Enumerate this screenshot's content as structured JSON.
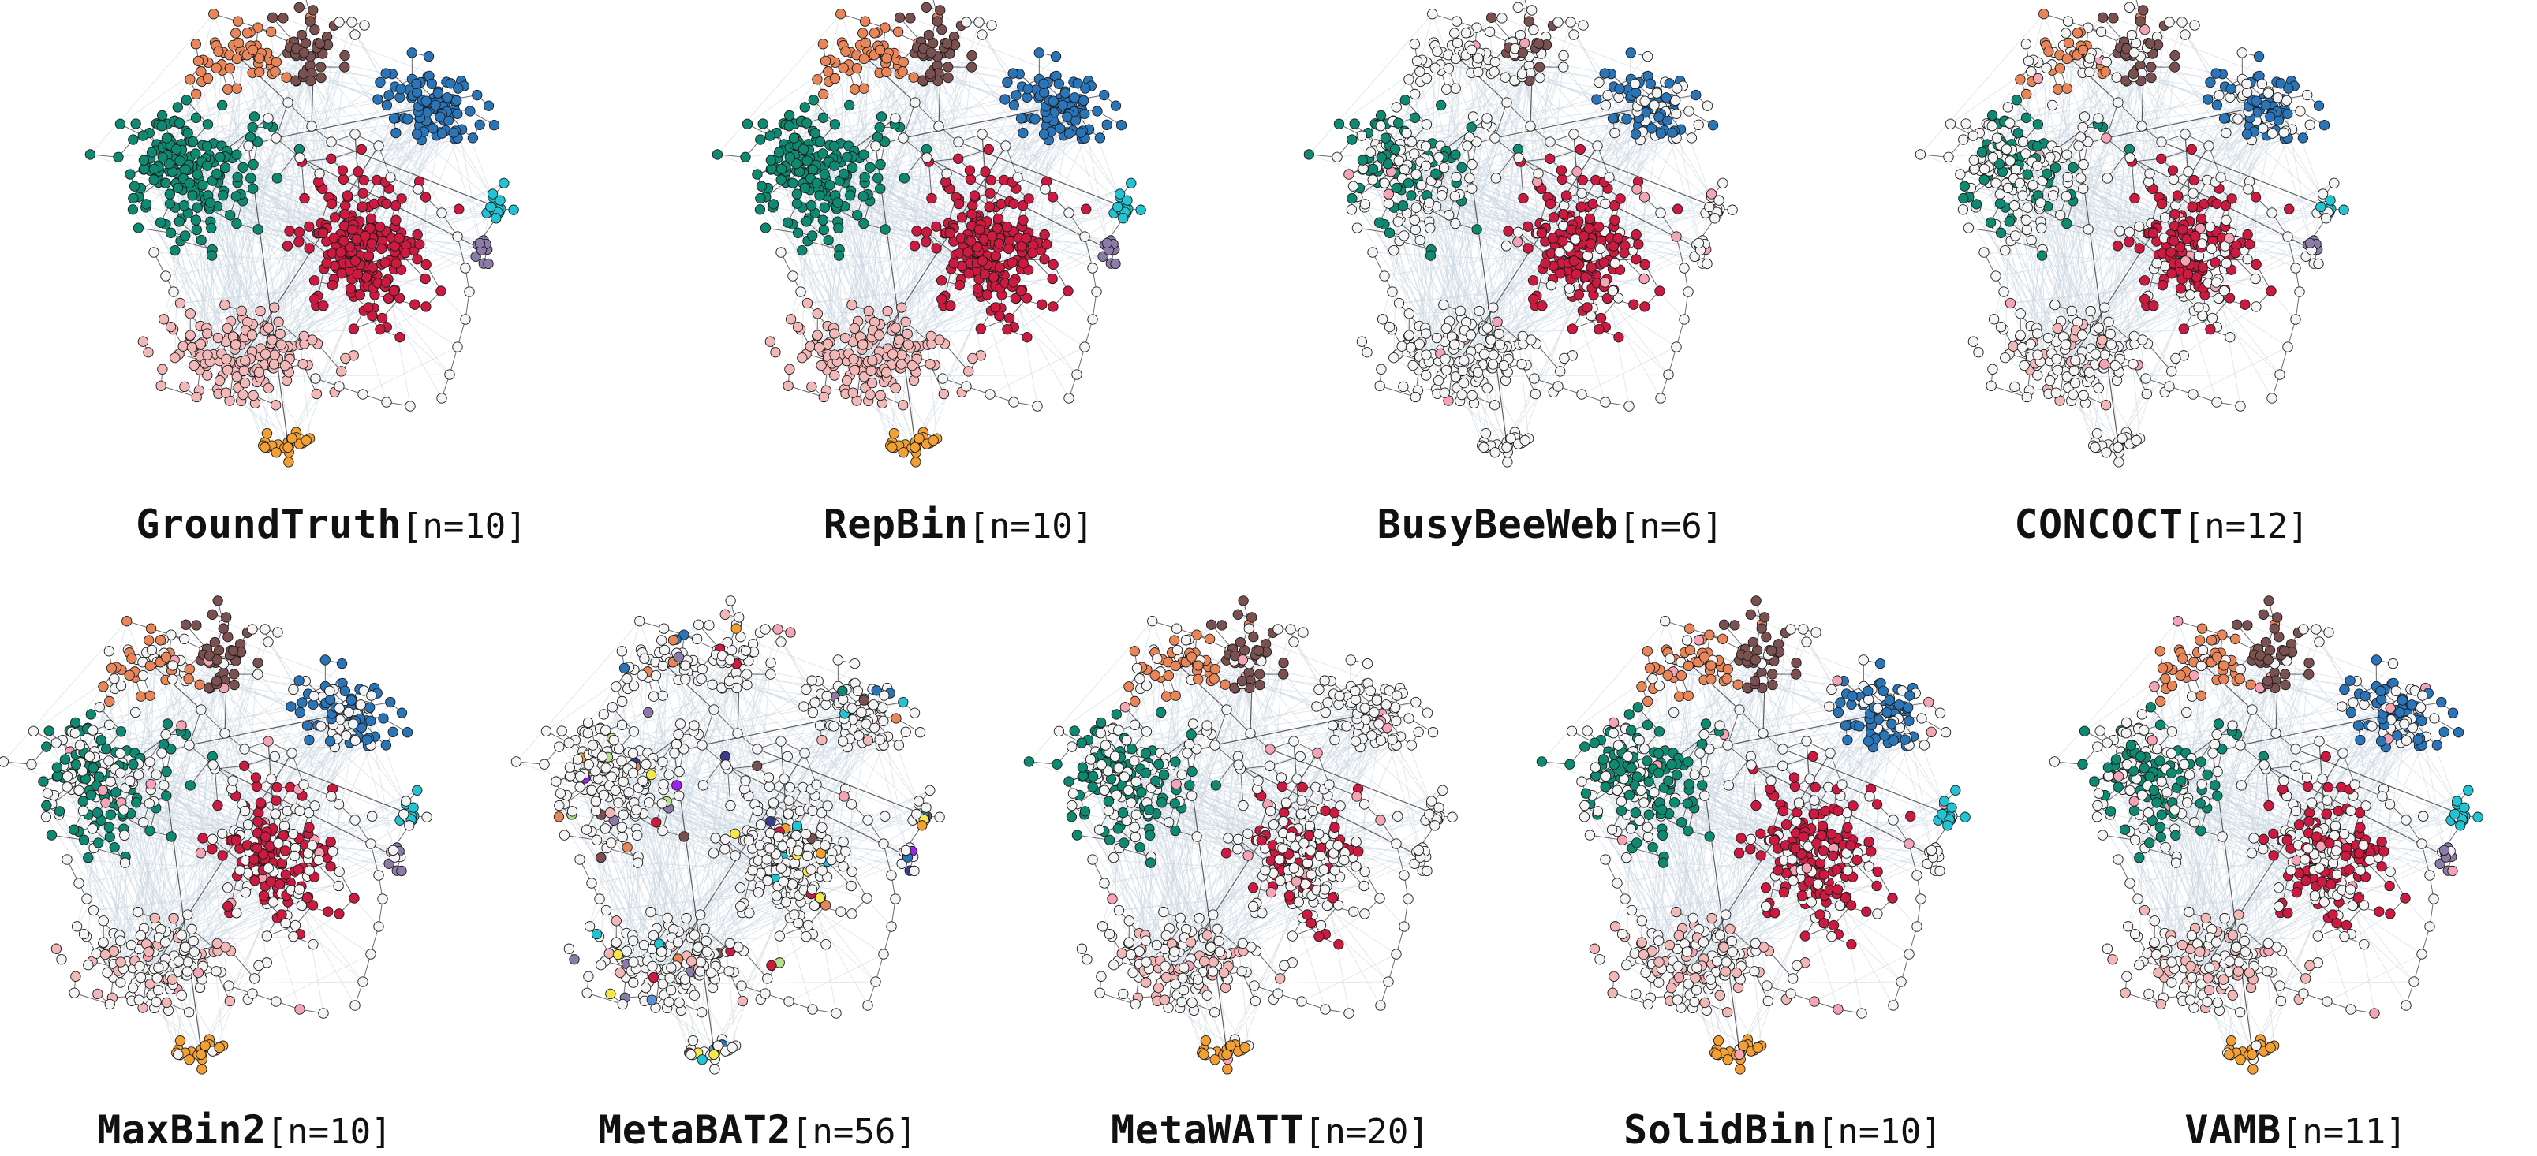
{
  "figure": {
    "panels": [
      {
        "method": "GroundTruth",
        "count_label": "[n=10]",
        "bins": 10,
        "coloring": "truth"
      },
      {
        "method": "RepBin",
        "count_label": "[n=10]",
        "bins": 10,
        "coloring": "truth"
      },
      {
        "method": "BusyBeeWeb",
        "count_label": "[n=6]",
        "bins": 6,
        "coloring": "partial"
      },
      {
        "method": "CONCOCT",
        "count_label": "[n=12]",
        "bins": 12,
        "coloring": "partial"
      },
      {
        "method": "MaxBin2",
        "count_label": "[n=10]",
        "bins": 10,
        "coloring": "partial"
      },
      {
        "method": "MetaBAT2",
        "count_label": "[n=56]",
        "bins": 56,
        "coloring": "fragmented"
      },
      {
        "method": "MetaWATT",
        "count_label": "[n=20]",
        "bins": 20,
        "coloring": "partial"
      },
      {
        "method": "SolidBin",
        "count_label": "[n=10]",
        "bins": 10,
        "coloring": "partial"
      },
      {
        "method": "VAMB",
        "count_label": "[n=11]",
        "bins": 11,
        "coloring": "partial"
      }
    ],
    "bin_colors": {
      "green": "#0e8a72",
      "brown": "#7a5150",
      "orange": "#e8865a",
      "blue": "#2a74b8",
      "red": "#cc1a40",
      "pink": "#f2b8b8",
      "cyan": "#22c4d4",
      "purple": "#8c7aa8",
      "yellow_orange": "#f2a033",
      "light_pink": "#f4a4b4",
      "unbinned": "#f4f4f4"
    },
    "edge_color": "#c8d6e0",
    "node_outline": "#1a1a1a"
  }
}
